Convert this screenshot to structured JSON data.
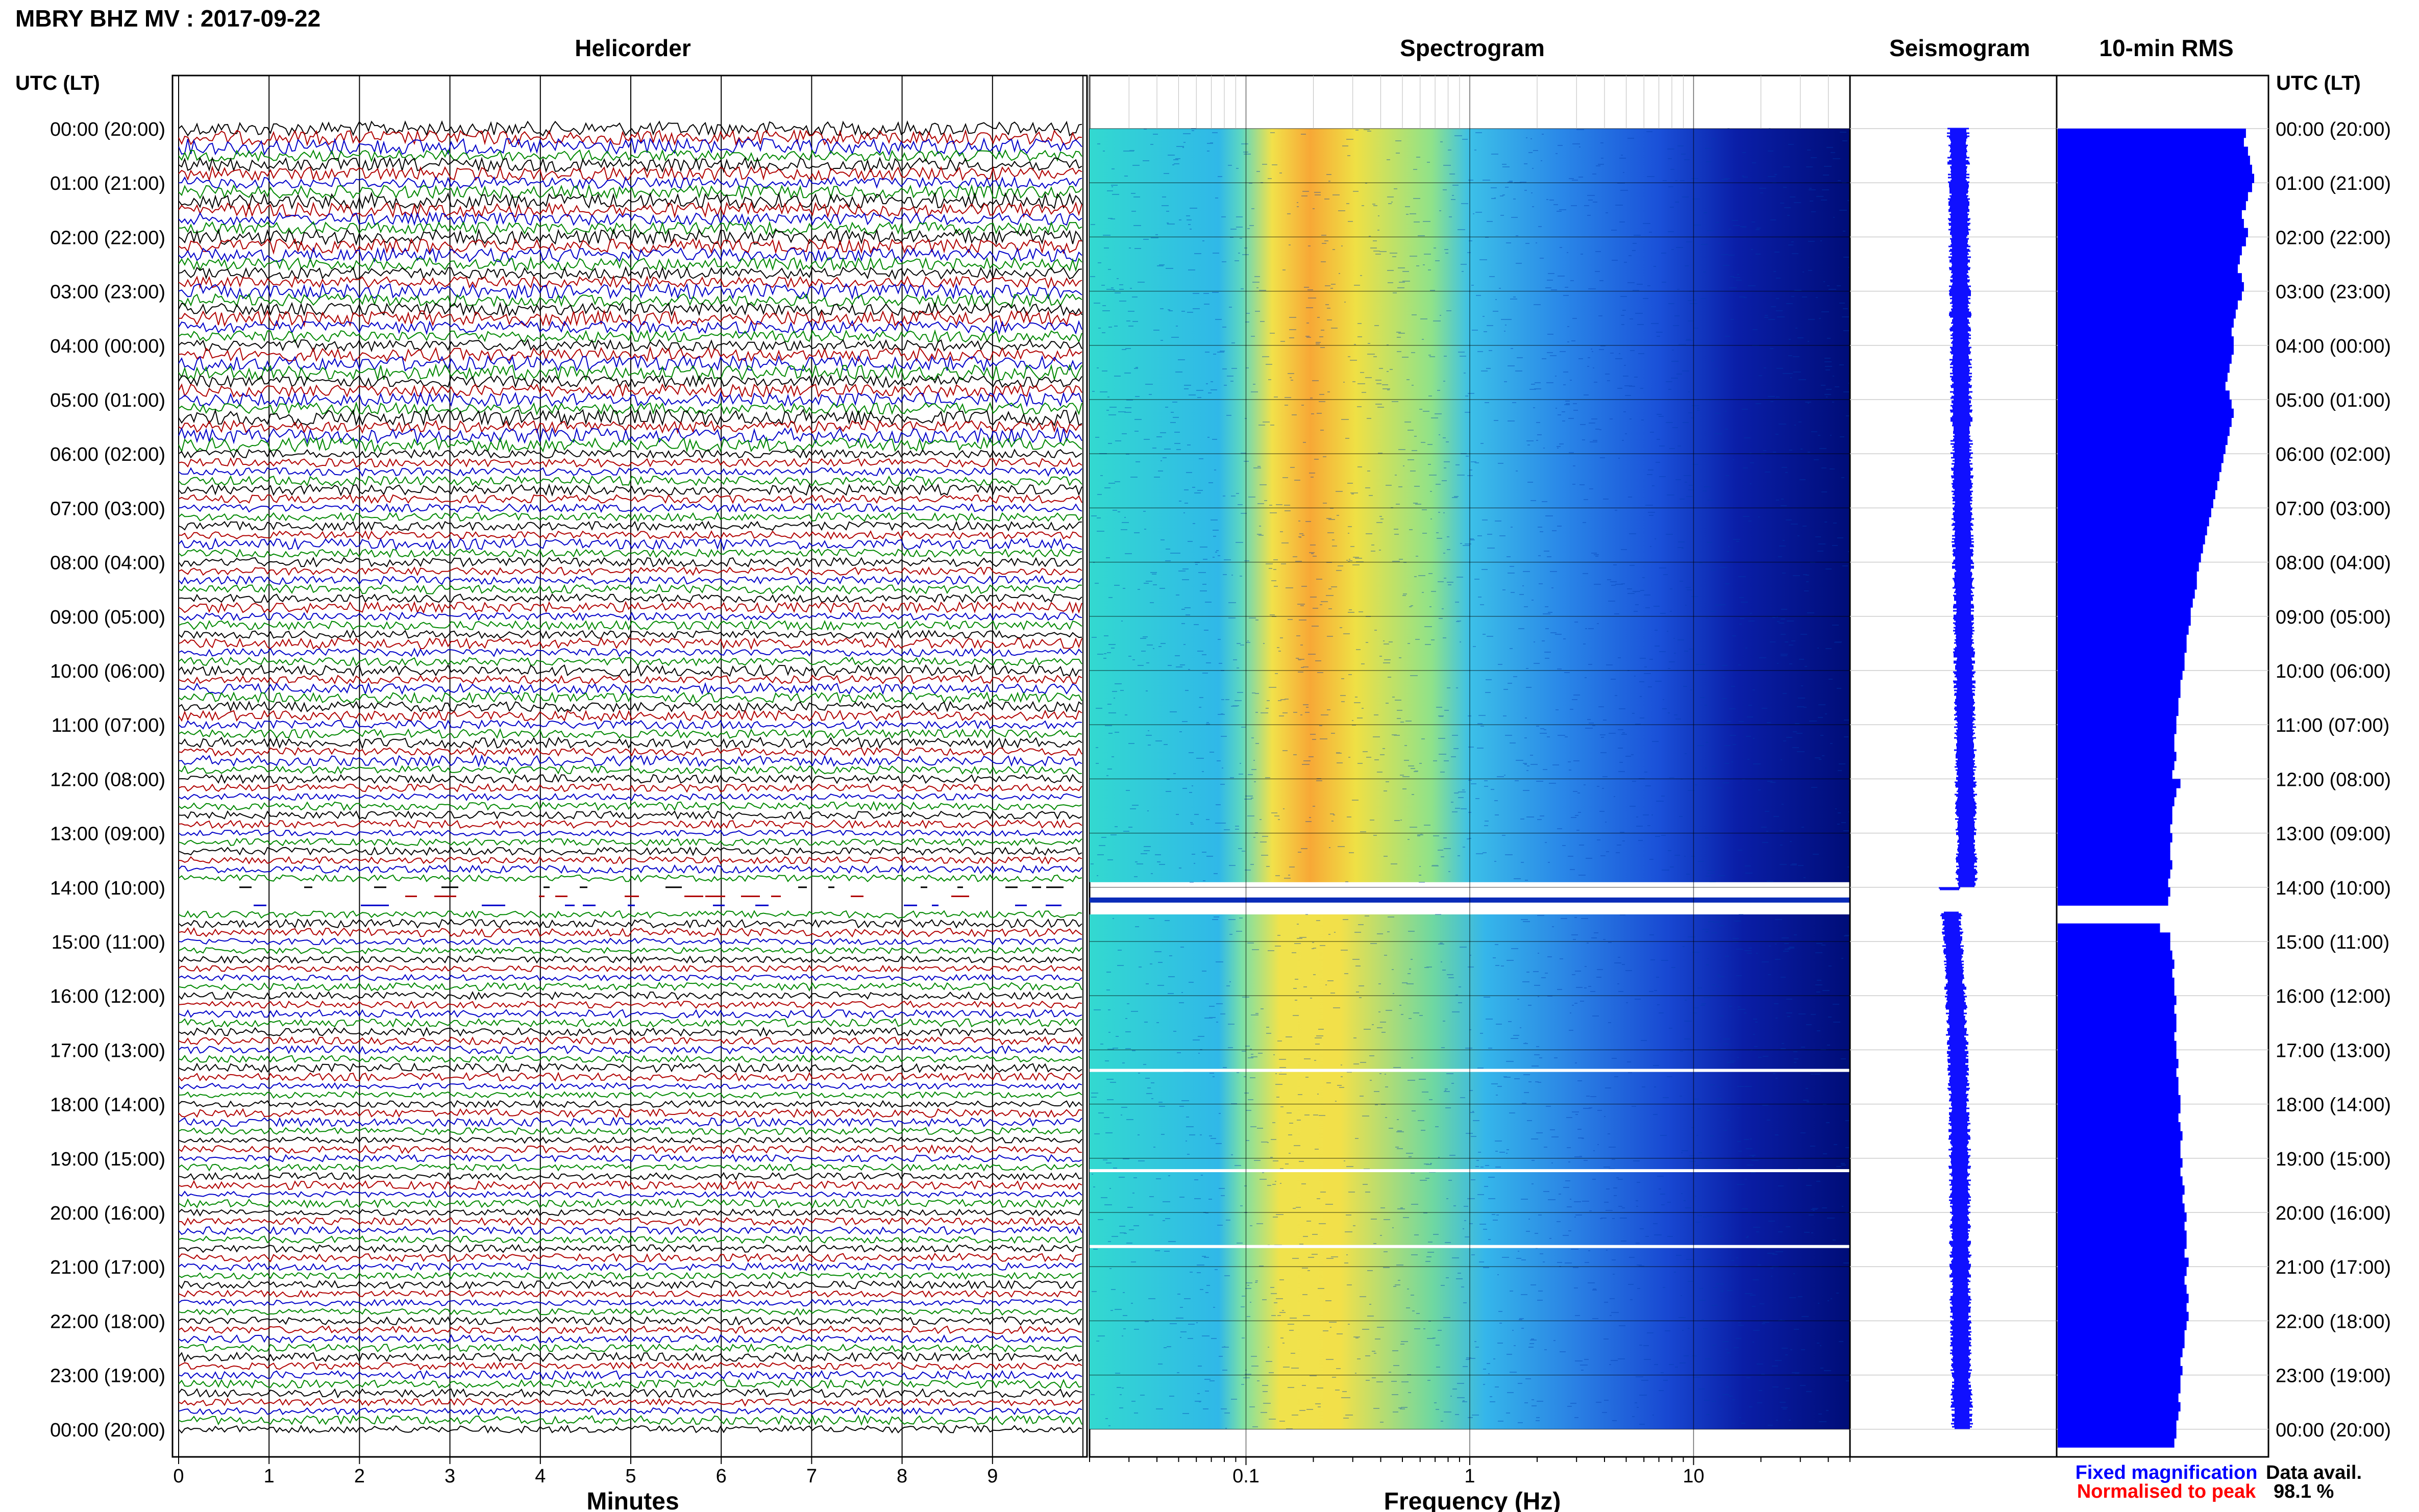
{
  "station_title": "MBRY BHZ MV : 2017-09-22",
  "time_axis_label": "UTC (LT)",
  "panels": {
    "helicorder": "Helicorder",
    "spectrogram": "Spectrogram",
    "seismogram": "Seismogram",
    "rms": "10-min RMS"
  },
  "time_labels": [
    "00:00 (20:00)",
    "01:00 (21:00)",
    "02:00 (22:00)",
    "03:00 (23:00)",
    "04:00 (00:00)",
    "05:00 (01:00)",
    "06:00 (02:00)",
    "07:00 (03:00)",
    "08:00 (04:00)",
    "09:00 (05:00)",
    "10:00 (06:00)",
    "11:00 (07:00)",
    "12:00 (08:00)",
    "13:00 (09:00)",
    "14:00 (10:00)",
    "15:00 (11:00)",
    "16:00 (12:00)",
    "17:00 (13:00)",
    "18:00 (14:00)",
    "19:00 (15:00)",
    "20:00 (16:00)",
    "21:00 (17:00)",
    "22:00 (18:00)",
    "23:00 (19:00)",
    "00:00 (20:00)"
  ],
  "helicorder": {
    "xlabel": "Minutes",
    "xticks": [
      "0",
      "1",
      "2",
      "3",
      "4",
      "5",
      "6",
      "7",
      "8",
      "9"
    ],
    "trace_colors": [
      "#000000",
      "#b00000",
      "#0000c8",
      "#008800"
    ]
  },
  "spectrogram": {
    "xlabel": "Frequency (Hz)",
    "xticks": [
      "0.1",
      "1",
      "10"
    ],
    "scale": "log",
    "xlim": [
      0.02,
      50
    ]
  },
  "legend": {
    "fixed": "Fixed magnification",
    "normalised": "Normalised to peak",
    "fixed_color": "#0000ff",
    "normalised_color": "#ff0000"
  },
  "data_availability": {
    "label": "Data avail.",
    "value": "98.1 %"
  },
  "chart_data": {
    "type": "heatmap",
    "title": "MBRY BHZ MV : 2017-09-22",
    "data_gap_hours": [
      14.0,
      14.5
    ],
    "rms_10min_relative": [
      0.92,
      0.91,
      0.93,
      0.94,
      0.95,
      0.96,
      0.95,
      0.93,
      0.92,
      0.9,
      0.91,
      0.93,
      0.92,
      0.9,
      0.89,
      0.88,
      0.9,
      0.91,
      0.9,
      0.88,
      0.87,
      0.86,
      0.85,
      0.86,
      0.86,
      0.85,
      0.84,
      0.83,
      0.82,
      0.84,
      0.85,
      0.86,
      0.85,
      0.84,
      0.83,
      0.82,
      0.81,
      0.8,
      0.79,
      0.78,
      0.77,
      0.76,
      0.75,
      0.74,
      0.73,
      0.72,
      0.71,
      0.7,
      0.69,
      0.68,
      0.68,
      0.67,
      0.66,
      0.65,
      0.65,
      0.64,
      0.63,
      0.63,
      0.62,
      0.62,
      0.61,
      0.6,
      0.6,
      0.59,
      0.59,
      0.58,
      0.58,
      0.57,
      0.57,
      0.58,
      0.57,
      0.56,
      0.6,
      0.58,
      0.57,
      0.56,
      0.56,
      0.55,
      0.56,
      0.55,
      0.55,
      0.56,
      0.55,
      0.54,
      0.55,
      0.54,
      null,
      null,
      0.5,
      0.55,
      0.55,
      0.56,
      0.57,
      0.56,
      0.57,
      0.57,
      0.58,
      0.57,
      0.58,
      0.58,
      0.57,
      0.58,
      0.58,
      0.59,
      0.58,
      0.59,
      0.59,
      0.6,
      0.6,
      0.59,
      0.6,
      0.61,
      0.6,
      0.6,
      0.61,
      0.6,
      0.61,
      0.62,
      0.61,
      0.62,
      0.63,
      0.62,
      0.63,
      0.63,
      0.62,
      0.64,
      0.63,
      0.62,
      0.63,
      0.64,
      0.63,
      0.64,
      0.63,
      0.62,
      0.62,
      0.61,
      0.6,
      0.61,
      0.6,
      0.6,
      0.59,
      0.6,
      0.59,
      0.58,
      0.58,
      0.57
    ]
  }
}
